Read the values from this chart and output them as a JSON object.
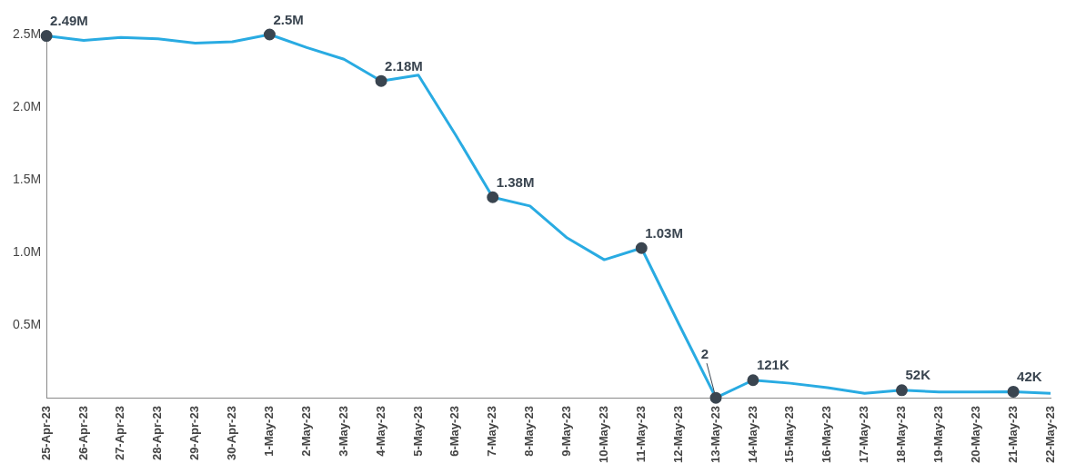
{
  "chart_data": {
    "type": "line",
    "categories": [
      "25-Apr-23",
      "26-Apr-23",
      "27-Apr-23",
      "28-Apr-23",
      "29-Apr-23",
      "30-Apr-23",
      "1-May-23",
      "2-May-23",
      "3-May-23",
      "4-May-23",
      "5-May-23",
      "6-May-23",
      "7-May-23",
      "8-May-23",
      "9-May-23",
      "10-May-23",
      "11-May-23",
      "12-May-23",
      "13-May-23",
      "14-May-23",
      "15-May-23",
      "16-May-23",
      "17-May-23",
      "18-May-23",
      "19-May-23",
      "20-May-23",
      "21-May-23",
      "22-May-23"
    ],
    "series": [
      {
        "color": "#29abe2",
        "values": [
          2490000,
          2460000,
          2480000,
          2470000,
          2440000,
          2450000,
          2500000,
          2410000,
          2330000,
          2180000,
          2220000,
          1810000,
          1380000,
          1320000,
          1100000,
          950000,
          1030000,
          510000,
          2,
          121000,
          100000,
          70000,
          30000,
          52000,
          40000,
          40000,
          42000,
          30000
        ],
        "value_labels": [
          "2.49M",
          null,
          null,
          null,
          null,
          null,
          "2.5M",
          null,
          null,
          "2.18M",
          null,
          null,
          "1.38M",
          null,
          null,
          null,
          "1.03M",
          null,
          "2",
          "121K",
          null,
          null,
          null,
          "52K",
          null,
          null,
          "42K",
          null
        ]
      }
    ],
    "ylim": [
      0,
      2500000
    ],
    "yticks": [
      {
        "value": 500000,
        "label": "0.5M"
      },
      {
        "value": 1000000,
        "label": "1.0M"
      },
      {
        "value": 1500000,
        "label": "1.5M"
      },
      {
        "value": 2000000,
        "label": "2.0M"
      },
      {
        "value": 2500000,
        "label": "2.5M"
      }
    ],
    "grid": false,
    "legend": false,
    "line_style": "solid"
  }
}
